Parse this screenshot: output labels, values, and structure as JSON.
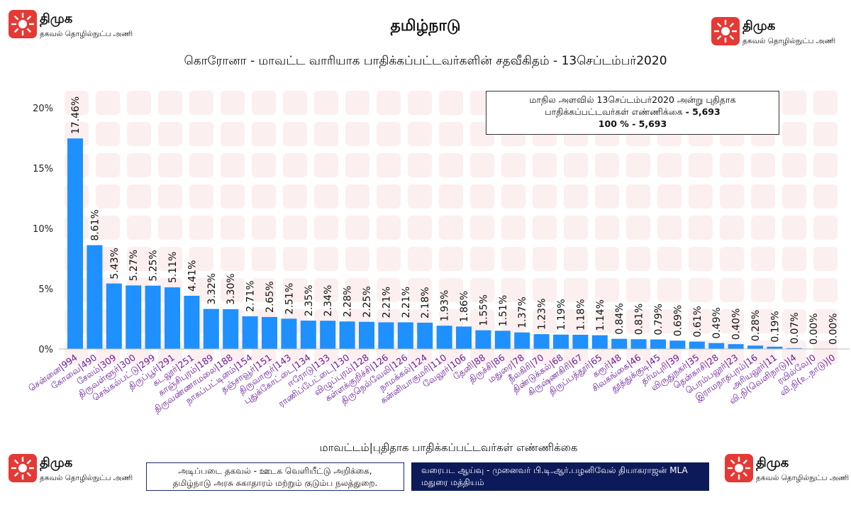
{
  "header": {
    "title": "தமிழ்நாடு",
    "subtitle": "கொரோனா - மாவட்ட வாரியாக பாதிக்கப்பட்டவர்களின் சதவீகிதம் - 13செப்டம்பர்2020"
  },
  "logo": {
    "brand": "திமுக",
    "tagline": "தகவல் தொழில்நுட்ப அணி"
  },
  "info_box": {
    "line1": "மாநில அளவில் 13செப்டம்பர்2020 அன்று புதிதாக",
    "line2_text": "பாதிக்கப்பட்டவர்கள் எண்ணிக்கை ",
    "line2_value": "- 5,693",
    "line3": "100 % - 5,693"
  },
  "footer": {
    "x_axis_title": "மாவட்டம்|புதிதாக பாதிக்கப்பட்டவர்கள் எண்ணிக்கை",
    "source_line1": "அடிப்படை தகவல் - ஊடக வெளியீட்டு அறிக்கை,",
    "source_line2": "தமிழ்நாடு அரசு சுகாதாரம் மற்றும் குடும்ப நலத்துறை.",
    "credit_line1": "வரைபட ஆய்வு - முனைவர் பி.டி.ஆர்.பழனிவேல் தியாகராஜன் MLA",
    "credit_line2": "மதுரை மத்தியம்"
  },
  "colors": {
    "bar": "#1e90ff",
    "category_label": "#6a1b9a",
    "logo_red": "#e53935",
    "watermark": "#fbe2e2",
    "credit_bg": "#0d1a5a"
  },
  "chart_data": {
    "type": "bar",
    "ylim": [
      0,
      20
    ],
    "y_ticks": [
      "0%",
      "5%",
      "10%",
      "15%",
      "20%"
    ],
    "categories": [
      "சென்னை|994",
      "கோவை|490",
      "சேலம்|309",
      "திருவள்ளூர்|300",
      "செங்கல்பட்டு|299",
      "திருப்பூர்|291",
      "கடலூர்|251",
      "காஞ்சிபுரம்|189",
      "திருவண்ணாமலை|188",
      "நாகப்பட்டினம்|154",
      "தஞ்சாவூர்|151",
      "திருவாரூர்|143",
      "புதுக்கோட்டை|134",
      "ஈரோடு|133",
      "ராணிப்பேட்டை|130",
      "விழுப்புரம்|128",
      "கள்ளக்குறிச்சி|126",
      "திருநெல்வேலி|126",
      "நாமக்கல்|124",
      "கன்னியாகுமரி|110",
      "வேலூர்|106",
      "தேனி|88",
      "திருச்சி|86",
      "மதுரை|78",
      "நீலகிரி|70",
      "திண்டுக்கல்|68",
      "கிருஷ்ணகிரி|67",
      "திருப்பத்தூர்|65",
      "கரூர்|48",
      "சிவகங்கை|46",
      "தூத்துக்குடி|45",
      "தர்மபுரி|39",
      "விருதுநகர்|35",
      "தென்காசி|28",
      "பெரம்பலூர்|23",
      "இராமநாதபுரம்|16",
      "அரியலூர்|11",
      "வி.நி(வெளிநாடு)|4",
      "ரயில்வே|0",
      "வி.நி(உ.நாடு)|0"
    ],
    "values": [
      17.46,
      8.61,
      5.43,
      5.27,
      5.25,
      5.11,
      4.41,
      3.32,
      3.3,
      2.71,
      2.65,
      2.51,
      2.35,
      2.34,
      2.28,
      2.25,
      2.21,
      2.21,
      2.18,
      1.93,
      1.86,
      1.55,
      1.51,
      1.37,
      1.23,
      1.19,
      1.18,
      1.14,
      0.84,
      0.81,
      0.79,
      0.69,
      0.61,
      0.49,
      0.4,
      0.28,
      0.19,
      0.07,
      0.0,
      0.0
    ],
    "value_labels": [
      "17.46%",
      "8.61%",
      "5.43%",
      "5.27%",
      "5.25%",
      "5.11%",
      "4.41%",
      "3.32%",
      "3.30%",
      "2.71%",
      "2.65%",
      "2.51%",
      "2.35%",
      "2.34%",
      "2.28%",
      "2.25%",
      "2.21%",
      "2.21%",
      "2.18%",
      "1.93%",
      "1.86%",
      "1.55%",
      "1.51%",
      "1.37%",
      "1.23%",
      "1.19%",
      "1.18%",
      "1.14%",
      "0.84%",
      "0.81%",
      "0.79%",
      "0.69%",
      "0.61%",
      "0.49%",
      "0.40%",
      "0.28%",
      "0.19%",
      "0.07%",
      "0.00%",
      "0.00%"
    ],
    "grid": false,
    "legend": "none"
  }
}
